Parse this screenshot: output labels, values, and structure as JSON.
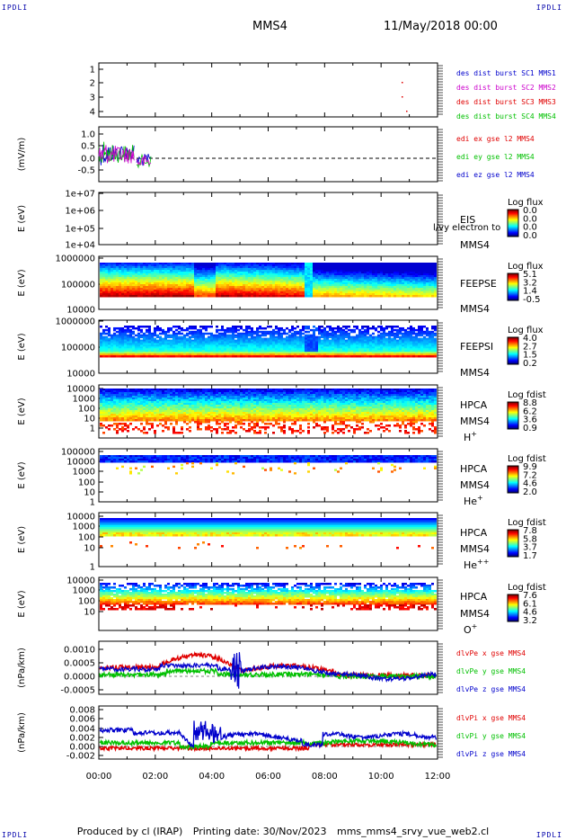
{
  "header": {
    "corner_tl": "IPDLI",
    "corner_tr": "IPDLI",
    "corner_bl": "IPDLI",
    "corner_br": "IPDLI",
    "spacecraft": "MMS4",
    "date": "11/May/2018 00:00"
  },
  "footer": {
    "producer": "Produced by cl (IRAP)",
    "printing": "Printing date: 30/Nov/2023",
    "filename": "mms_mms4_srvy_vue_web2.cl"
  },
  "colors": {
    "red": "#e00000",
    "green": "#00c000",
    "blue": "#0000cc",
    "magenta": "#cc00cc"
  },
  "chart_data": [
    {
      "type": "scatter",
      "ylabel": "",
      "ylim": [
        0.5,
        4.5
      ],
      "yticks": [
        "1",
        "2",
        "3",
        "4"
      ],
      "legend": [
        {
          "label": "des dist burst SC1 MMS1",
          "color": "#0000cc"
        },
        {
          "label": "des dist burst SC2 MMS2",
          "color": "#cc00cc"
        },
        {
          "label": "des dist burst SC3 MMS3",
          "color": "#e00000"
        },
        {
          "label": "des dist burst SC4 MMS4",
          "color": "#00c000"
        }
      ]
    },
    {
      "type": "line",
      "ylabel": "(mV/m)",
      "ylim": [
        -1.0,
        1.25
      ],
      "yticks": [
        "1.0",
        "0.5",
        "0.0",
        "-0.5"
      ],
      "legend": [
        {
          "label": "edi ex gse l2 MMS4",
          "color": "#e00000"
        },
        {
          "label": "edi ey gse l2 MMS4",
          "color": "#00c000"
        },
        {
          "label": "edi ez gse l2 MMS4",
          "color": "#0000cc"
        }
      ]
    },
    {
      "type": "heatmap",
      "ylabel": "E (eV)",
      "yticks": [
        "1e+07",
        "1e+06",
        "1e+05",
        "1e+04"
      ],
      "instrument": [
        "EIS",
        "MMS4"
      ],
      "overlay_text": "l/vy electron to",
      "colorbar": {
        "title": "Log flux",
        "ticks": [
          "0.0",
          "0.0",
          "0.0",
          "0.0"
        ]
      }
    },
    {
      "type": "heatmap",
      "ylabel": "E (eV)",
      "yticks": [
        "1000000",
        "100000",
        "10000"
      ],
      "instrument": [
        "FEEPSE",
        "MMS4"
      ],
      "colorbar": {
        "title": "Log flux",
        "ticks": [
          "5.1",
          "3.2",
          "1.4",
          "-0.5"
        ]
      }
    },
    {
      "type": "heatmap",
      "ylabel": "E (eV)",
      "yticks": [
        "1000000",
        "100000",
        "10000"
      ],
      "instrument": [
        "FEEPSI",
        "MMS4"
      ],
      "colorbar": {
        "title": "Log flux",
        "ticks": [
          "4.0",
          "2.7",
          "1.5",
          "0.2"
        ]
      }
    },
    {
      "type": "heatmap",
      "ylabel": "E (eV)",
      "yticks": [
        "10000",
        "1000",
        "100",
        "10",
        "1"
      ],
      "instrument": [
        "HPCA",
        "MMS4",
        "H",
        "+"
      ],
      "colorbar": {
        "title": "Log fdist",
        "ticks": [
          "8.8",
          "6.2",
          "3.6",
          "0.9"
        ]
      }
    },
    {
      "type": "heatmap",
      "ylabel": "E (eV)",
      "yticks": [
        "100000",
        "10000",
        "1000",
        "100",
        "10",
        "1"
      ],
      "instrument": [
        "HPCA",
        "MMS4",
        "He",
        "+"
      ],
      "colorbar": {
        "title": "Log fdist",
        "ticks": [
          "9.9",
          "7.2",
          "4.6",
          "2.0"
        ]
      }
    },
    {
      "type": "heatmap",
      "ylabel": "E (eV)",
      "yticks": [
        "10000",
        "1000",
        "100",
        "10",
        "1"
      ],
      "instrument": [
        "HPCA",
        "MMS4",
        "He",
        "++"
      ],
      "colorbar": {
        "title": "Log fdist",
        "ticks": [
          "7.8",
          "5.8",
          "3.7",
          "1.7"
        ]
      }
    },
    {
      "type": "heatmap",
      "ylabel": "E (eV)",
      "yticks": [
        "10000",
        "1000",
        "100",
        "10"
      ],
      "instrument": [
        "HPCA",
        "MMS4",
        "O",
        "+"
      ],
      "colorbar": {
        "title": "Log fdist",
        "ticks": [
          "7.6",
          "6.1",
          "4.6",
          "3.2"
        ]
      }
    },
    {
      "type": "line",
      "ylabel": "(nPa/km)",
      "ylim": [
        -0.0007,
        0.0012
      ],
      "yticks": [
        "0.0010",
        "0.0005",
        "0.0000",
        "-0.0005"
      ],
      "legend": [
        {
          "label": "dlvPe x gse MMS4",
          "color": "#e00000"
        },
        {
          "label": "dlvPe y gse MMS4",
          "color": "#00c000"
        },
        {
          "label": "dlvPe z gse MMS4",
          "color": "#0000cc"
        }
      ]
    },
    {
      "type": "line",
      "ylabel": "(nPa/km)",
      "ylim": [
        -0.003,
        0.009
      ],
      "yticks": [
        "0.008",
        "0.006",
        "0.004",
        "0.002",
        "0.000",
        "-0.002"
      ],
      "legend": [
        {
          "label": "dlvPi x gse MMS4",
          "color": "#e00000"
        },
        {
          "label": "dlvPi y gse MMS4",
          "color": "#00c000"
        },
        {
          "label": "dlvPi z gse MMS4",
          "color": "#0000cc"
        }
      ]
    }
  ],
  "x_axis": {
    "ticks": [
      "00:00",
      "02:00",
      "04:00",
      "06:00",
      "08:00",
      "10:00",
      "12:00"
    ]
  }
}
